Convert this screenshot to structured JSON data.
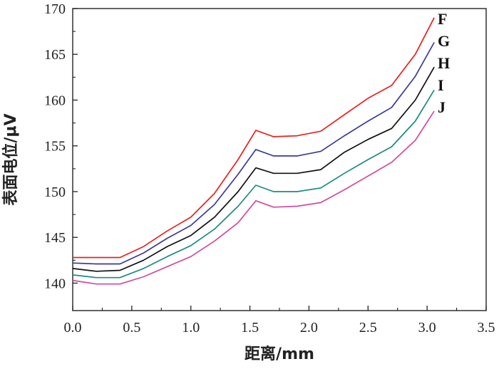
{
  "chart_data": {
    "type": "line",
    "xlabel": "距离/mm",
    "ylabel": "表面电位/μV",
    "xlim": [
      0.0,
      3.5
    ],
    "ylim": [
      137,
      170
    ],
    "xticks": [
      "0.0",
      "0.5",
      "1.0",
      "1.5",
      "2.0",
      "2.5",
      "3.0",
      "3.5"
    ],
    "yticks": [
      "140",
      "145",
      "150",
      "155",
      "160",
      "165",
      "170"
    ],
    "grid": false,
    "x": [
      0.0,
      0.2,
      0.4,
      0.6,
      0.8,
      1.0,
      1.2,
      1.4,
      1.55,
      1.7,
      1.9,
      2.1,
      2.3,
      2.5,
      2.7,
      2.9,
      3.06
    ],
    "series": [
      {
        "name": "F",
        "color": "#e8221c",
        "values": [
          142.8,
          142.8,
          142.8,
          144.0,
          145.7,
          147.2,
          149.8,
          153.5,
          156.7,
          156.0,
          156.1,
          156.6,
          158.4,
          160.2,
          161.6,
          165.0,
          169.0
        ]
      },
      {
        "name": "G",
        "color": "#3a3a98",
        "values": [
          142.2,
          142.1,
          142.1,
          143.3,
          144.9,
          146.3,
          148.6,
          151.9,
          154.6,
          153.9,
          153.9,
          154.4,
          156.1,
          157.7,
          159.2,
          162.6,
          166.3
        ]
      },
      {
        "name": "H",
        "color": "#111111",
        "values": [
          141.6,
          141.3,
          141.4,
          142.5,
          144.0,
          145.2,
          147.2,
          150.0,
          152.6,
          152.0,
          152.0,
          152.4,
          154.3,
          155.7,
          156.9,
          160.0,
          163.6
        ]
      },
      {
        "name": "I",
        "color": "#1a8c80",
        "values": [
          140.9,
          140.6,
          140.6,
          141.6,
          142.9,
          144.1,
          145.9,
          148.4,
          150.7,
          150.0,
          150.0,
          150.4,
          152.0,
          153.5,
          154.9,
          157.7,
          161.1
        ]
      },
      {
        "name": "J",
        "color": "#d04ba0",
        "values": [
          140.3,
          139.9,
          139.9,
          140.7,
          141.8,
          142.9,
          144.6,
          146.6,
          149.0,
          148.3,
          148.4,
          148.8,
          150.2,
          151.7,
          153.2,
          155.6,
          158.8
        ]
      }
    ]
  }
}
